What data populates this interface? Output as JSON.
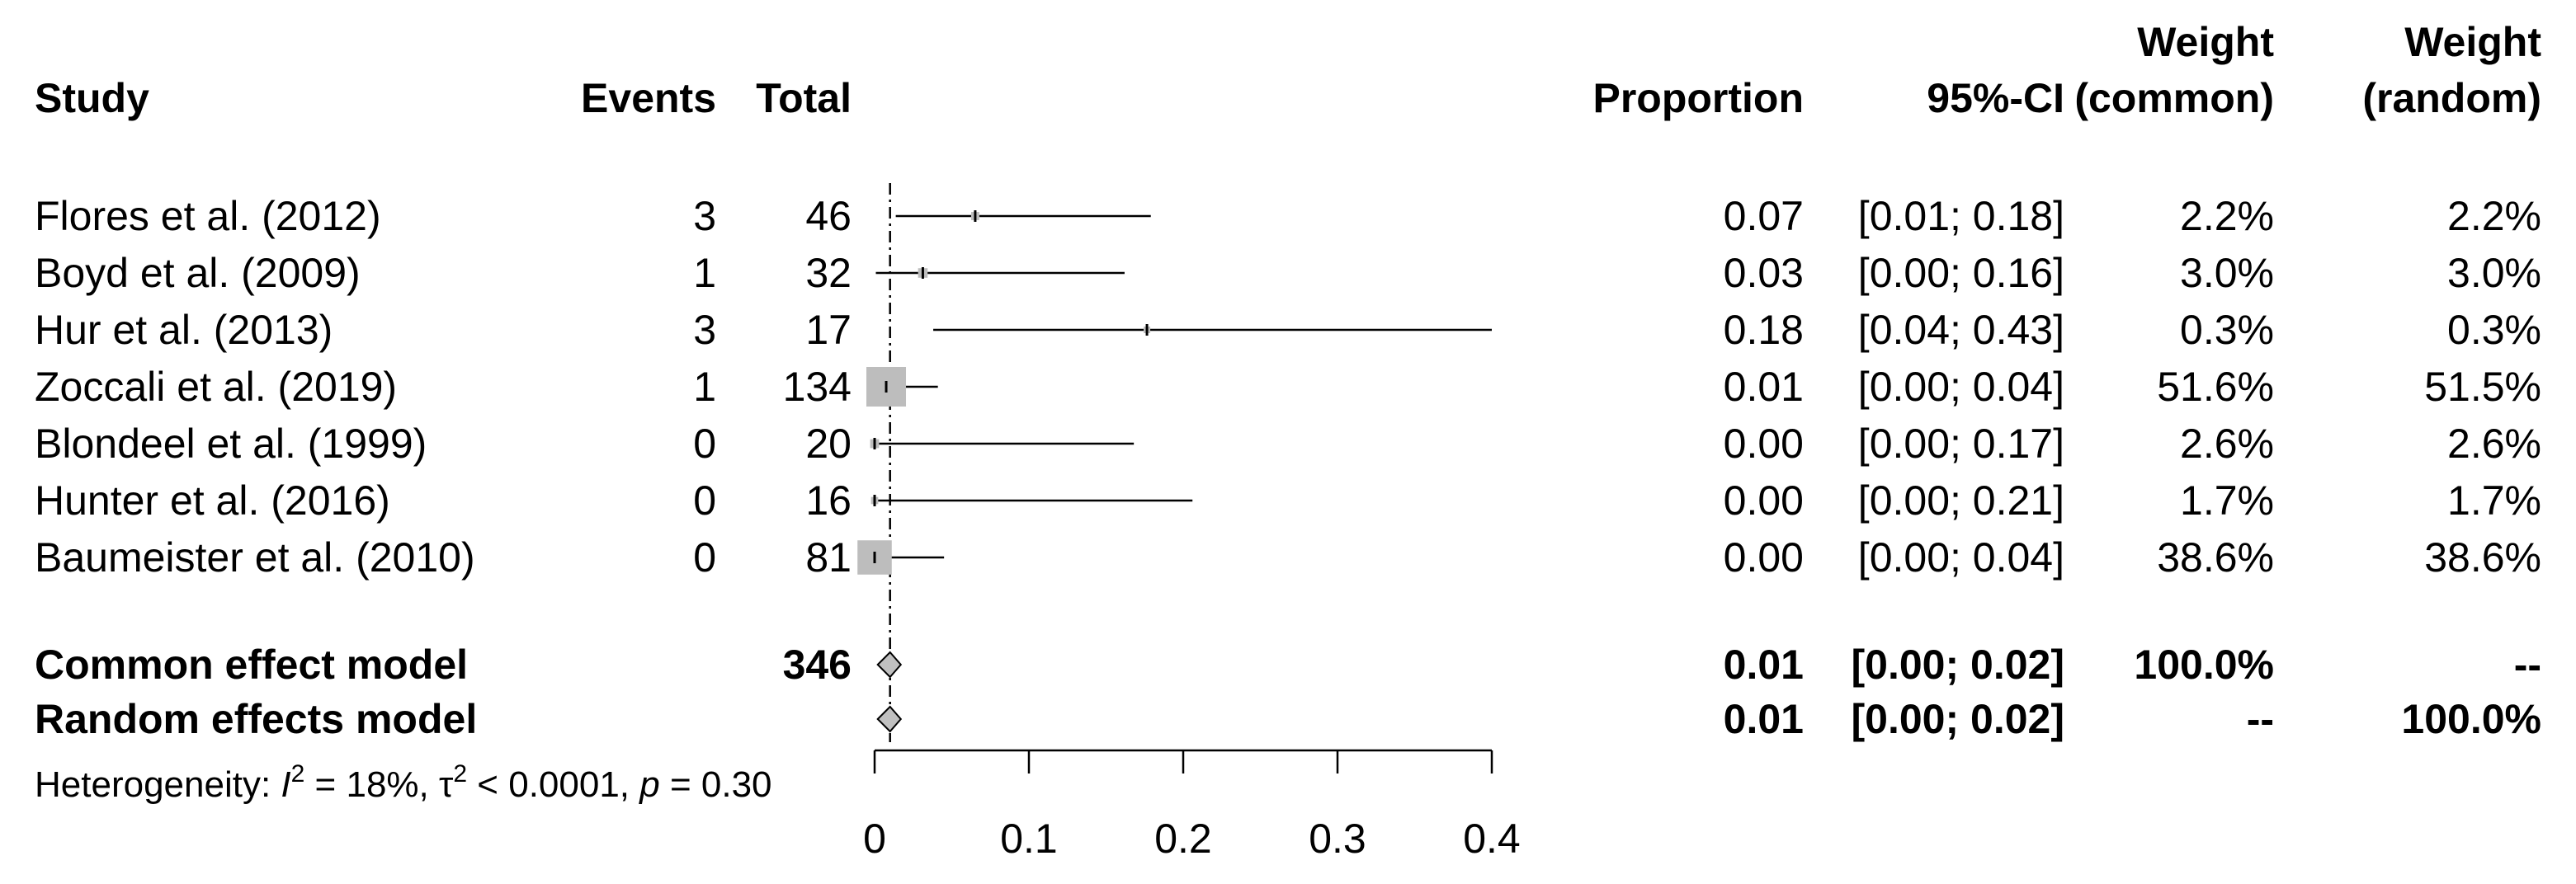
{
  "headers": {
    "study": "Study",
    "events": "Events",
    "total": "Total",
    "proportion": "Proportion",
    "ci": "95%-CI",
    "weight_common_1": "Weight",
    "weight_common_2": "(common)",
    "weight_random_1": "Weight",
    "weight_random_2": "(random)"
  },
  "studies": [
    {
      "study": "Flores et al. (2012)",
      "events": "3",
      "total": "46",
      "proportion": "0.07",
      "ci": "[0.01; 0.18]",
      "weight_common": "2.2%",
      "weight_random": "2.2%"
    },
    {
      "study": "Boyd et al. (2009)",
      "events": "1",
      "total": "32",
      "proportion": "0.03",
      "ci": "[0.00; 0.16]",
      "weight_common": "3.0%",
      "weight_random": "3.0%"
    },
    {
      "study": "Hur et al. (2013)",
      "events": "3",
      "total": "17",
      "proportion": "0.18",
      "ci": "[0.04; 0.43]",
      "weight_common": "0.3%",
      "weight_random": "0.3%"
    },
    {
      "study": "Zoccali et al. (2019)",
      "events": "1",
      "total": "134",
      "proportion": "0.01",
      "ci": "[0.00; 0.04]",
      "weight_common": "51.6%",
      "weight_random": "51.5%"
    },
    {
      "study": "Blondeel et al. (1999)",
      "events": "0",
      "total": "20",
      "proportion": "0.00",
      "ci": "[0.00; 0.17]",
      "weight_common": "2.6%",
      "weight_random": "2.6%"
    },
    {
      "study": "Hunter et al. (2016)",
      "events": "0",
      "total": "16",
      "proportion": "0.00",
      "ci": "[0.00; 0.21]",
      "weight_common": "1.7%",
      "weight_random": "1.7%"
    },
    {
      "study": "Baumeister et al. (2010)",
      "events": "0",
      "total": "81",
      "proportion": "0.00",
      "ci": "[0.00; 0.04]",
      "weight_common": "38.6%",
      "weight_random": "38.6%"
    }
  ],
  "models": [
    {
      "label": "Common effect model",
      "total": "346",
      "proportion": "0.01",
      "ci": "[0.00; 0.02]",
      "weight_common": "100.0%",
      "weight_random": "--"
    },
    {
      "label": "Random effects model",
      "total": "",
      "proportion": "0.01",
      "ci": "[0.00; 0.02]",
      "weight_common": "--",
      "weight_random": "100.0%"
    }
  ],
  "heterogeneity": {
    "prefix": "Heterogeneity: ",
    "I_symbol": "I",
    "sup2": "2",
    "mid1": " = 18%, ",
    "tau": "τ",
    "mid2": " < 0.0001, ",
    "p": "p",
    "end": " = 0.30"
  },
  "colors": {
    "box": "#bdbdbd",
    "diamond": "#c0c0c0",
    "line": "#000000"
  },
  "chart_data": {
    "type": "forest",
    "xlim": [
      0,
      0.4
    ],
    "ticks": [
      0,
      0.1,
      0.2,
      0.3,
      0.4
    ],
    "tick_labels": [
      "0",
      "0.1",
      "0.2",
      "0.3",
      "0.4"
    ],
    "reference_line": 0.01,
    "studies": [
      {
        "name": "Flores et al. (2012)",
        "est": 0.0652,
        "lo": 0.0137,
        "hi": 0.179,
        "weight": 2.2
      },
      {
        "name": "Boyd et al. (2009)",
        "est": 0.03125,
        "lo": 0.0008,
        "hi": 0.162,
        "weight": 3.0
      },
      {
        "name": "Hur et al. (2013)",
        "est": 0.1765,
        "lo": 0.038,
        "hi": 0.434,
        "weight": 0.3
      },
      {
        "name": "Zoccali et al. (2019)",
        "est": 0.0075,
        "lo": 0.0002,
        "hi": 0.041,
        "weight": 51.6
      },
      {
        "name": "Blondeel et al. (1999)",
        "est": 0.0,
        "lo": 0.0,
        "hi": 0.168,
        "weight": 2.6
      },
      {
        "name": "Hunter et al. (2016)",
        "est": 0.0,
        "lo": 0.0,
        "hi": 0.206,
        "weight": 1.7
      },
      {
        "name": "Baumeister et al. (2010)",
        "est": 0.0,
        "lo": 0.0,
        "hi": 0.045,
        "weight": 38.6
      }
    ],
    "pooled": [
      {
        "name": "Common effect model",
        "est": 0.01,
        "lo": 0.002,
        "hi": 0.017
      },
      {
        "name": "Random effects model",
        "est": 0.01,
        "lo": 0.002,
        "hi": 0.017
      }
    ]
  }
}
